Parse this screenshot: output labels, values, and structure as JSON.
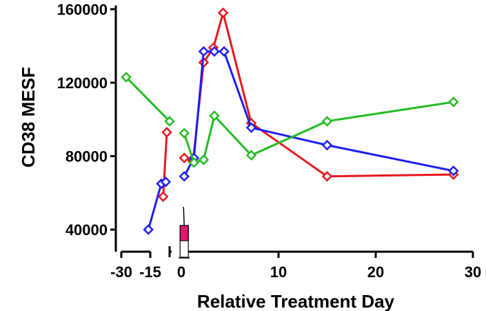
{
  "chart_data": {
    "type": "line",
    "title": "",
    "xlabel": "Relative Treatment Day",
    "ylabel": "CD38 MESF",
    "grid": false,
    "legend": "none",
    "x_segments": [
      {
        "range": [
          -30,
          -15
        ],
        "ticks": [
          -30,
          -15
        ],
        "tick_labels": [
          "-30",
          "-15"
        ]
      },
      {
        "range": [
          -6,
          -1.5
        ],
        "ticks": [],
        "tick_labels": []
      },
      {
        "range": [
          0,
          30
        ],
        "ticks": [
          0,
          10,
          20,
          30
        ],
        "tick_labels": [
          "0",
          "10",
          "20",
          "30"
        ]
      }
    ],
    "y_axis": {
      "ylim": [
        28000,
        162000
      ],
      "ticks": [
        40000,
        80000,
        120000,
        160000
      ],
      "tick_labels": [
        "40000",
        "80000",
        "120000",
        "160000"
      ]
    },
    "series": [
      {
        "color": "#e8151b",
        "segments": [
          [
            {
              "x": -9,
              "y": 58000
            },
            {
              "x": -8,
              "y": 93000
            }
          ],
          [
            {
              "x": 0.3,
              "y": 79000
            },
            {
              "x": 1.2,
              "y": 77000
            },
            {
              "x": 2.3,
              "y": 131000
            },
            {
              "x": 3.3,
              "y": 139000
            },
            {
              "x": 4.3,
              "y": 158000
            },
            {
              "x": 7.2,
              "y": 98000
            },
            {
              "x": 15,
              "y": 69000
            },
            {
              "x": 28,
              "y": 70000
            }
          ]
        ]
      },
      {
        "color": "#1c1cf0",
        "segments": [
          [
            {
              "x": -16,
              "y": 40000
            },
            {
              "x": -9.5,
              "y": 65000
            },
            {
              "x": -8.3,
              "y": 66000
            }
          ],
          [
            {
              "x": 0.3,
              "y": 69000
            },
            {
              "x": 1.3,
              "y": 79000
            },
            {
              "x": 2.3,
              "y": 137000
            },
            {
              "x": 3.4,
              "y": 137000
            },
            {
              "x": 4.4,
              "y": 137000
            },
            {
              "x": 7.2,
              "y": 95500
            },
            {
              "x": 15,
              "y": 86000
            },
            {
              "x": 28,
              "y": 72000
            }
          ]
        ]
      },
      {
        "color": "#22bb22",
        "segments": [
          [
            {
              "x": -27.5,
              "y": 123000
            },
            {
              "x": -3,
              "y": 99000
            }
          ],
          [
            {
              "x": 0.3,
              "y": 92500
            },
            {
              "x": 1.3,
              "y": 76500
            },
            {
              "x": 2.3,
              "y": 78000
            },
            {
              "x": 3.4,
              "y": 102000
            },
            {
              "x": 7.2,
              "y": 80500
            },
            {
              "x": 15,
              "y": 99000
            },
            {
              "x": 28,
              "y": 109500
            }
          ]
        ]
      }
    ],
    "annotation": {
      "type": "syringe",
      "x": 0.3,
      "colors": {
        "fill": "#e0186e",
        "barrel": "#ffffff",
        "outline": "#000000"
      }
    }
  }
}
